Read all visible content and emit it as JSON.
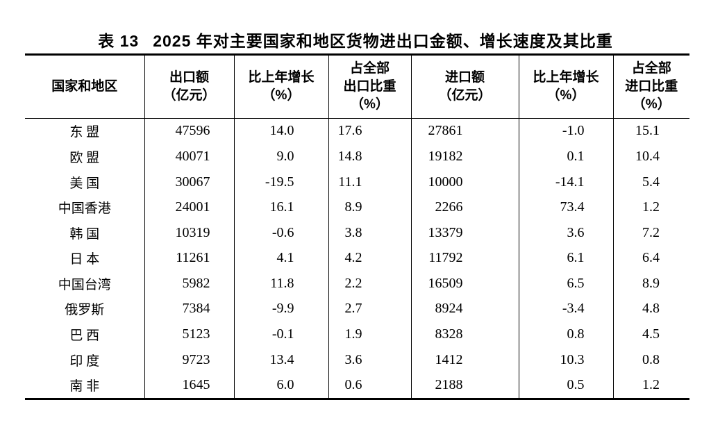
{
  "page": {
    "background_color": "#ffffff",
    "text_color": "#000000",
    "border_color": "#000000"
  },
  "title": {
    "table_no": "表 13",
    "text": "2025 年对主要国家和地区货物进出口金额、增长速度及其比重"
  },
  "table": {
    "columns": [
      {
        "label": "国家和地区"
      },
      {
        "label": "出口额\n（亿元）"
      },
      {
        "label": "比上年增长\n（%）"
      },
      {
        "label": "占全部\n出口比重\n（%）"
      },
      {
        "label": "进口额\n（亿元）"
      },
      {
        "label": "比上年增长\n（%）"
      },
      {
        "label": "占全部\n进口比重\n（%）"
      }
    ],
    "rows": [
      {
        "region": "东 盟",
        "values": [
          "47596",
          "14.0",
          "17.6",
          "27861",
          "-1.0",
          "15.1"
        ]
      },
      {
        "region": "欧 盟",
        "values": [
          "40071",
          "9.0",
          "14.8",
          "19182",
          "0.1",
          "10.4"
        ]
      },
      {
        "region": "美 国",
        "values": [
          "30067",
          "-19.5",
          "11.1",
          "10000",
          "-14.1",
          "5.4"
        ]
      },
      {
        "region": "中国香港",
        "values": [
          "24001",
          "16.1",
          "8.9",
          "2266",
          "73.4",
          "1.2"
        ]
      },
      {
        "region": "韩 国",
        "values": [
          "10319",
          "-0.6",
          "3.8",
          "13379",
          "3.6",
          "7.2"
        ]
      },
      {
        "region": "日 本",
        "values": [
          "11261",
          "4.1",
          "4.2",
          "11792",
          "6.1",
          "6.4"
        ]
      },
      {
        "region": "中国台湾",
        "values": [
          "5982",
          "11.8",
          "2.2",
          "16509",
          "6.5",
          "8.9"
        ]
      },
      {
        "region": "俄罗斯",
        "values": [
          "7384",
          "-9.9",
          "2.7",
          "8924",
          "-3.4",
          "4.8"
        ]
      },
      {
        "region": "巴 西",
        "values": [
          "5123",
          "-0.1",
          "1.9",
          "8328",
          "0.8",
          "4.5"
        ]
      },
      {
        "region": "印 度",
        "values": [
          "9723",
          "13.4",
          "3.6",
          "1412",
          "10.3",
          "0.8"
        ]
      },
      {
        "region": "南 非",
        "values": [
          "1645",
          "6.0",
          "0.6",
          "2188",
          "0.5",
          "1.2"
        ]
      }
    ]
  }
}
